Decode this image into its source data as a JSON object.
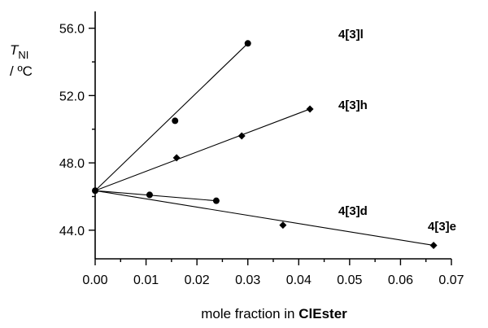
{
  "chart_data": {
    "type": "scatter",
    "title": "",
    "ylabel": {
      "main": "T",
      "sub": "NI",
      "unit": "/ ºC"
    },
    "xlabel": {
      "prefix": "mole fraction in ",
      "bold": "ClEster"
    },
    "xlim": [
      0,
      0.07
    ],
    "ylim": [
      42.3,
      57.0
    ],
    "x_ticks": [
      "0.00",
      "0.01",
      "0.02",
      "0.03",
      "0.04",
      "0.05",
      "0.06",
      "0.07"
    ],
    "y_ticks": [
      "44.0",
      "48.0",
      "52.0",
      "56.0"
    ],
    "grid": false,
    "legend": "none",
    "origin_point": {
      "x": 0.0,
      "y": 46.35
    },
    "series": [
      {
        "name": "4[3]l",
        "marker": "circle",
        "points": [
          [
            0.0157,
            50.5
          ],
          [
            0.03,
            55.1
          ]
        ],
        "fit": [
          [
            0.0,
            46.35
          ],
          [
            0.03,
            55.1
          ]
        ]
      },
      {
        "name": "4[3]h",
        "marker": "diamond",
        "points": [
          [
            0.016,
            48.3
          ],
          [
            0.0288,
            49.6
          ],
          [
            0.0422,
            51.2
          ]
        ],
        "fit": [
          [
            0.0,
            46.35
          ],
          [
            0.0422,
            51.2
          ]
        ]
      },
      {
        "name": "4[3]d",
        "marker": "circle",
        "points": [
          [
            0.0107,
            46.1
          ],
          [
            0.0238,
            45.75
          ]
        ],
        "fit": [
          [
            0.0,
            46.35
          ],
          [
            0.0238,
            45.75
          ]
        ]
      },
      {
        "name": "4[3]e",
        "marker": "diamond",
        "points": [
          [
            0.0369,
            44.3
          ],
          [
            0.0665,
            43.1
          ]
        ],
        "fit": [
          [
            0.0,
            46.35
          ],
          [
            0.0665,
            43.1
          ]
        ]
      }
    ]
  }
}
